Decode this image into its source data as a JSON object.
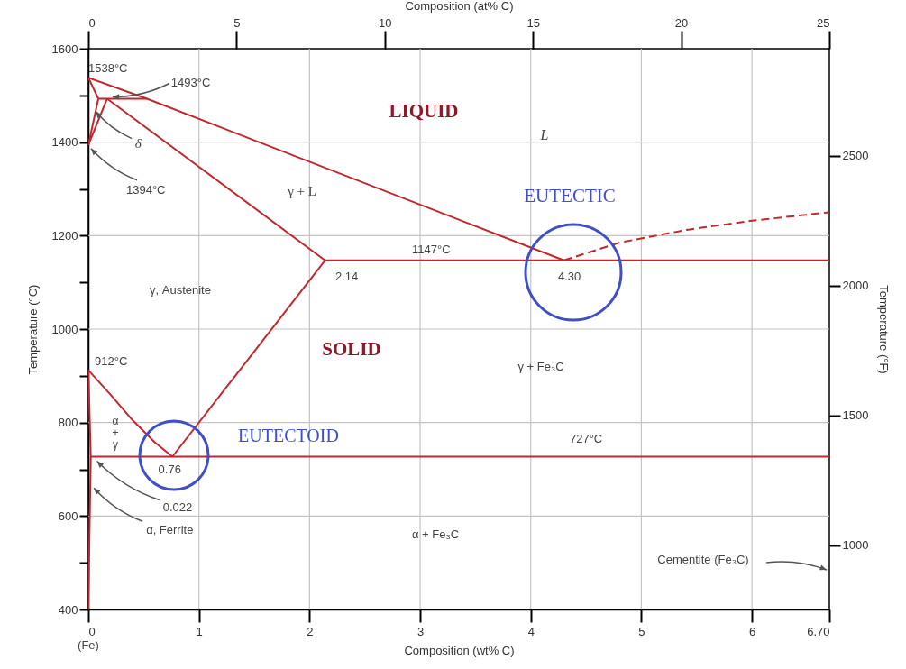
{
  "chart_data": {
    "type": "line",
    "xlabel": "Composition (wt% C)",
    "x2label": "Composition (at% C)",
    "ylabel": "Temperature (°C)",
    "y2label": "Temperature (°F)",
    "xlim": [
      0,
      6.7
    ],
    "xticks": [
      0,
      1,
      2,
      3,
      4,
      5,
      6,
      {
        "value": 6.7,
        "label": "6.70"
      }
    ],
    "x2lim": [
      0,
      25
    ],
    "x2ticks": [
      0,
      5,
      10,
      15,
      20,
      25
    ],
    "ylim": [
      400,
      1600
    ],
    "yticks": [
      400,
      {
        "value": 500,
        "label": null
      },
      600,
      {
        "value": 700,
        "label": null
      },
      800,
      {
        "value": 900,
        "label": null
      },
      1000,
      {
        "value": 1100,
        "label": null
      },
      1200,
      {
        "value": 1300,
        "label": null
      },
      1400,
      {
        "value": 1500,
        "label": null
      },
      1600
    ],
    "y2lim": [
      752,
      2912
    ],
    "y2ticks": [
      1000,
      1500,
      2000,
      2500
    ],
    "grid": true,
    "series": [
      {
        "color": "#c0282d",
        "x": [
          0,
          0.53,
          4.3
        ],
        "values": [
          1538,
          1493,
          1147
        ]
      },
      {
        "color": "#c0282d",
        "line_style": "dashed",
        "x": [
          4.3,
          4.8,
          5.4,
          6.0,
          6.7
        ],
        "values": [
          1147,
          1185,
          1212,
          1232,
          1250
        ]
      },
      {
        "color": "#c0282d",
        "x": [
          0,
          0.09
        ],
        "values": [
          1538,
          1493
        ]
      },
      {
        "color": "#c0282d",
        "x": [
          0.09,
          0
        ],
        "values": [
          1493,
          1394
        ]
      },
      {
        "color": "#c0282d",
        "x": [
          0.17,
          0
        ],
        "values": [
          1493,
          1394
        ]
      },
      {
        "color": "#c0282d",
        "x": [
          0.09,
          0.53
        ],
        "values": [
          1493,
          1493
        ]
      },
      {
        "color": "#c0282d",
        "x": [
          0.17,
          2.14
        ],
        "values": [
          1493,
          1147
        ]
      },
      {
        "color": "#c0282d",
        "x": [
          2.14,
          6.7
        ],
        "values": [
          1147,
          1147
        ]
      },
      {
        "color": "#c0282d",
        "x": [
          2.14,
          0.76
        ],
        "values": [
          1147,
          727
        ]
      },
      {
        "color": "#c0282d",
        "x": [
          0,
          0.2,
          0.4,
          0.6,
          0.76
        ],
        "values": [
          912,
          860,
          805,
          758,
          727
        ]
      },
      {
        "color": "#c0282d",
        "x": [
          0.022,
          6.7
        ],
        "values": [
          727,
          727
        ]
      },
      {
        "color": "#c0282d",
        "x": [
          0,
          0.022,
          0.01,
          0
        ],
        "values": [
          912,
          727,
          560,
          400
        ]
      }
    ],
    "annotations": [
      {
        "text": "1538°C",
        "x": 0,
        "y": 1538
      },
      {
        "text": "1493°C",
        "x": 0.17,
        "y": 1493
      },
      {
        "text": "δ",
        "x": 0.05,
        "y": 1460
      },
      {
        "text": "1394°C",
        "x": 0,
        "y": 1394
      },
      "LIQUID",
      "L",
      "γ + L",
      {
        "text": "1147°C",
        "x": 3.1,
        "y": 1147
      },
      {
        "text": "2.14",
        "x": 2.14,
        "y": 1147
      },
      {
        "text": "4.30",
        "x": 4.3,
        "y": 1147
      },
      "EUTECTIC",
      "γ, Austenite",
      "SOLID",
      {
        "text": "912°C",
        "x": 0,
        "y": 912
      },
      "γ + Fe₃C",
      "α + γ",
      "EUTECTOID",
      {
        "text": "727°C",
        "x": 4.5,
        "y": 727
      },
      {
        "text": "0.76",
        "x": 0.76,
        "y": 727
      },
      {
        "text": "0.022",
        "x": 0.022,
        "y": 727
      },
      {
        "text": "α, Ferrite",
        "x": 0.05,
        "y": 660
      },
      "α + Fe₃C",
      "Cementite (Fe₃C)",
      {
        "text": "(Fe)",
        "x": 0,
        "y": 400
      }
    ]
  }
}
